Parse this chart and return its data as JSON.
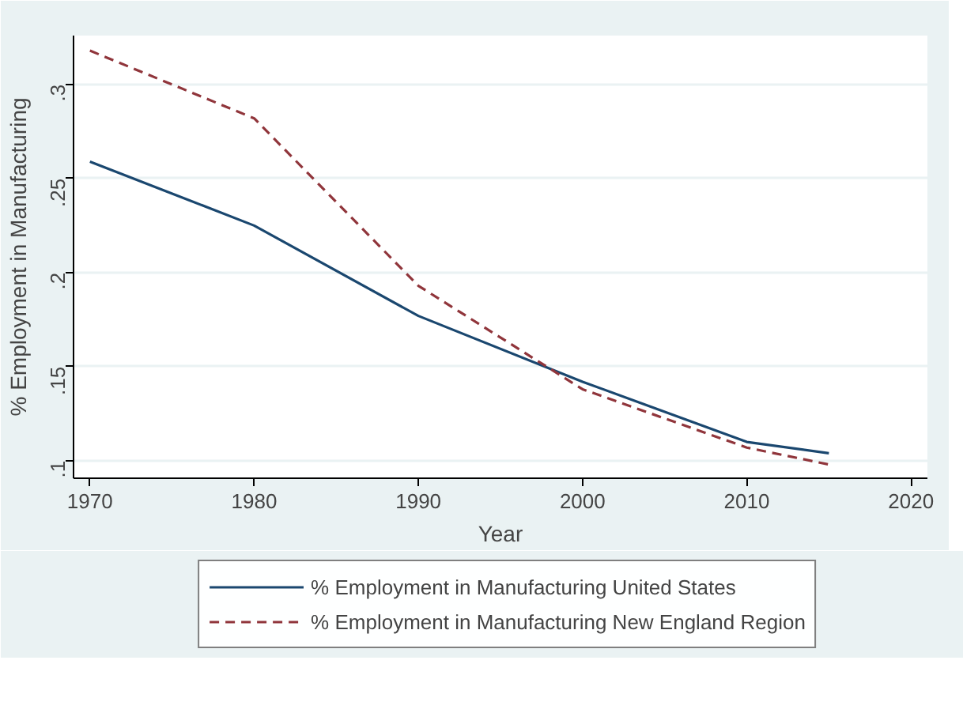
{
  "chart_data": {
    "type": "line",
    "xlabel": "Year",
    "ylabel": "% Employment in Manufacturing",
    "x": [
      1970,
      1980,
      1990,
      2000,
      2010,
      2015
    ],
    "series": [
      {
        "name": "% Employment in Manufacturing United States",
        "color": "#1a476f",
        "values": [
          0.259,
          0.225,
          0.177,
          0.142,
          0.11,
          0.104
        ],
        "line_style": "solid"
      },
      {
        "name": "% Employment in Manufacturing New England Region",
        "color": "#90353b",
        "values": [
          0.318,
          0.282,
          0.193,
          0.138,
          0.107,
          0.098
        ],
        "line_style": "dashed"
      }
    ],
    "xlim": [
      1969,
      2021
    ],
    "ylim": [
      0.0907,
      0.326
    ],
    "xticks": [
      1970,
      1980,
      1990,
      2000,
      2010,
      2020
    ],
    "yticks": [
      {
        "value": 0.1,
        "label": ".1"
      },
      {
        "value": 0.15,
        "label": ".15"
      },
      {
        "value": 0.2,
        "label": ".2"
      },
      {
        "value": 0.25,
        "label": ".25"
      },
      {
        "value": 0.3,
        "label": ".3"
      }
    ],
    "grid": "y",
    "legend": "bottom"
  }
}
